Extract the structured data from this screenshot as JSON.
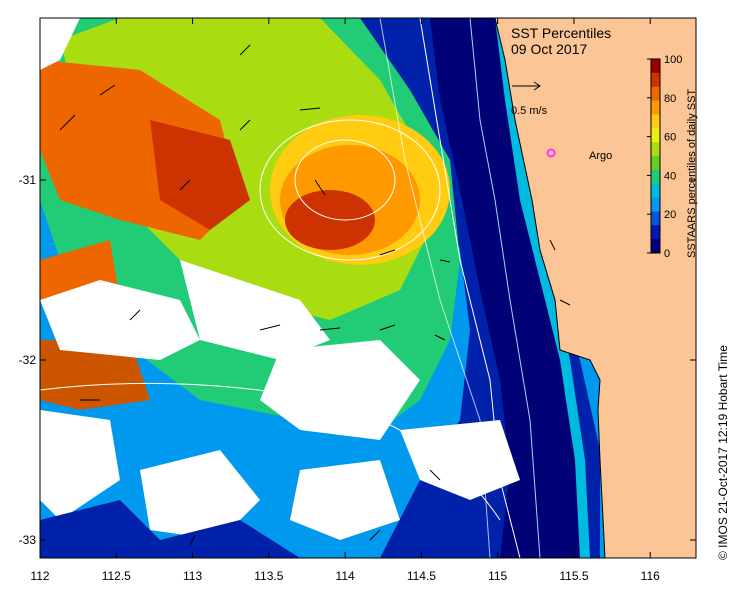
{
  "map": {
    "title": "SST Percentiles",
    "date": "09 Oct 2017",
    "scale_label": "0.5 m/s",
    "argo_label": "Argo",
    "credit": "© IMOS 21-Oct-2017 12:19 Hobart Time",
    "lon_range": [
      112,
      116.3
    ],
    "lat_range": [
      -33.1,
      -30.1
    ],
    "lon_ticks": [
      "112",
      "112.5",
      "113",
      "113.5",
      "114",
      "114.5",
      "115",
      "115.5",
      "116"
    ],
    "lat_ticks": [
      "-31",
      "-32",
      "-33"
    ],
    "argo_float": {
      "lon": 115.35,
      "lat": -30.85
    },
    "colors": {
      "land": "#fbc596",
      "argo": "#ff33ff",
      "no_data": "#ffffff"
    }
  },
  "colorbar": {
    "label": "SSTAARS percentiles of daily SST",
    "ticks": [
      "100",
      "80",
      "60",
      "40",
      "20",
      "0"
    ],
    "colors": [
      "#000077",
      "#0018b0",
      "#0055dd",
      "#0099ee",
      "#00bbdd",
      "#22cc77",
      "#66cc22",
      "#aadd11",
      "#eeee11",
      "#ffcc11",
      "#ff9900",
      "#ee6600",
      "#cc3300",
      "#990000"
    ]
  }
}
